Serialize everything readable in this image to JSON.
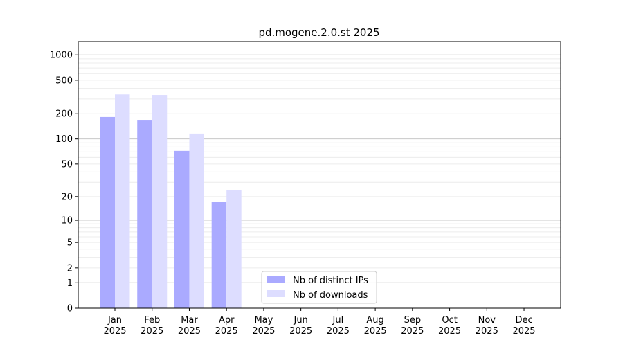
{
  "chart_data": {
    "type": "bar",
    "title": "pd.mogene.2.0.st 2025",
    "xlabel": "",
    "ylabel": "",
    "y_scale": "log(1+x)",
    "ylim": [
      0,
      1300
    ],
    "y_ticks": [
      0,
      1,
      2,
      5,
      10,
      20,
      50,
      100,
      200,
      500,
      1000
    ],
    "grid": true,
    "legend_position": "bottom-center",
    "categories": [
      {
        "month": "Jan",
        "year": "2025"
      },
      {
        "month": "Feb",
        "year": "2025"
      },
      {
        "month": "Mar",
        "year": "2025"
      },
      {
        "month": "Apr",
        "year": "2025"
      },
      {
        "month": "May",
        "year": "2025"
      },
      {
        "month": "Jun",
        "year": "2025"
      },
      {
        "month": "Jul",
        "year": "2025"
      },
      {
        "month": "Aug",
        "year": "2025"
      },
      {
        "month": "Sep",
        "year": "2025"
      },
      {
        "month": "Oct",
        "year": "2025"
      },
      {
        "month": "Nov",
        "year": "2025"
      },
      {
        "month": "Dec",
        "year": "2025"
      }
    ],
    "series": [
      {
        "name": "Nb of distinct IPs",
        "color": "#aaaaff",
        "values": [
          183,
          166,
          72,
          17,
          0,
          0,
          0,
          0,
          0,
          0,
          0,
          0
        ]
      },
      {
        "name": "Nb of downloads",
        "color": "#ddddff",
        "values": [
          340,
          335,
          116,
          24,
          0,
          0,
          0,
          0,
          0,
          0,
          0,
          0
        ]
      }
    ]
  }
}
